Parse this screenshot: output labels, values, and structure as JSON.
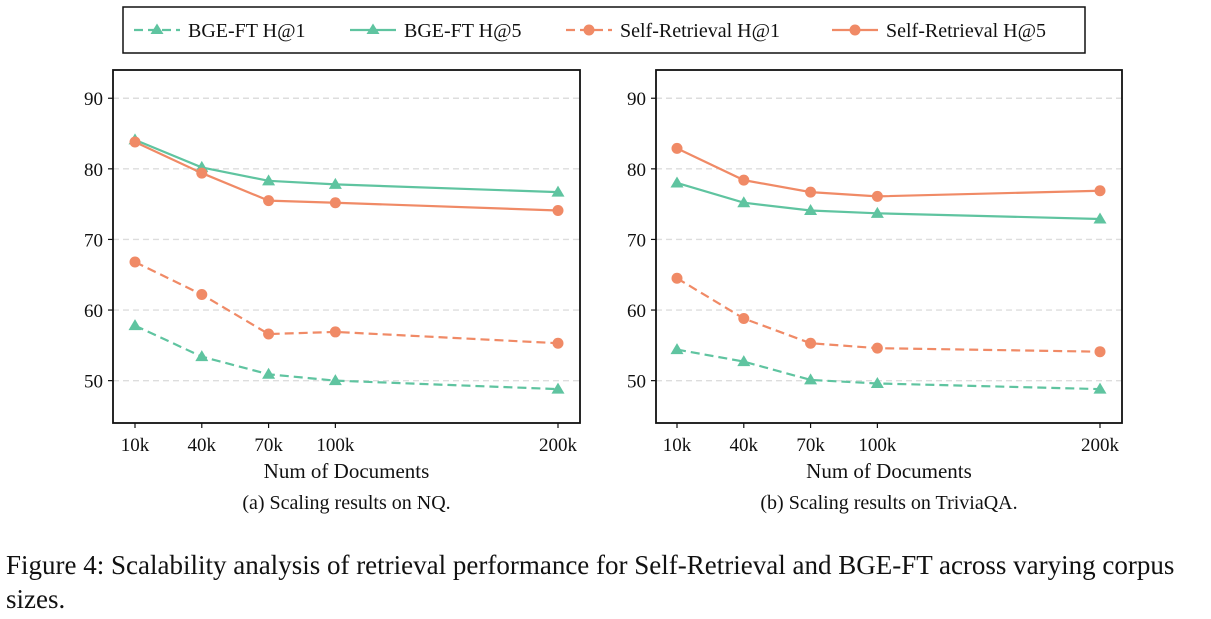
{
  "legend": [
    "BGE-FT H@1",
    "BGE-FT H@5",
    "Self-Retrieval H@1",
    "Self-Retrieval H@5"
  ],
  "colors": {
    "teal": "#5fc4a0",
    "orange": "#f08a66"
  },
  "caption": "Figure 4: Scalability analysis of retrieval performance for Self-Retrieval and BGE-FT across varying corpus sizes.",
  "chart_data": [
    {
      "type": "line",
      "title": "(a) Scaling results on NQ.",
      "xlabel": "Num of Documents",
      "ylabel": "",
      "categories": [
        "10k",
        "40k",
        "70k",
        "100k",
        "200k"
      ],
      "x": [
        10,
        40,
        70,
        100,
        200
      ],
      "ylim": [
        44,
        94
      ],
      "yticks": [
        "50",
        "60",
        "70",
        "80",
        "90"
      ],
      "grid": true,
      "series": [
        {
          "name": "BGE-FT H@1",
          "color": "#5fc4a0",
          "style": "dashed",
          "marker": "triangle",
          "values": [
            57.8,
            53.4,
            50.9,
            50.0,
            48.8
          ]
        },
        {
          "name": "BGE-FT H@5",
          "color": "#5fc4a0",
          "style": "solid",
          "marker": "triangle",
          "values": [
            84.1,
            80.2,
            78.3,
            77.8,
            76.7
          ]
        },
        {
          "name": "Self-Retrieval H@1",
          "color": "#f08a66",
          "style": "dashed",
          "marker": "circle",
          "values": [
            66.8,
            62.2,
            56.6,
            56.9,
            55.3
          ]
        },
        {
          "name": "Self-Retrieval H@5",
          "color": "#f08a66",
          "style": "solid",
          "marker": "circle",
          "values": [
            83.8,
            79.4,
            75.5,
            75.2,
            74.1
          ]
        }
      ]
    },
    {
      "type": "line",
      "title": "(b) Scaling results on TriviaQA.",
      "xlabel": "Num of Documents",
      "ylabel": "",
      "categories": [
        "10k",
        "40k",
        "70k",
        "100k",
        "200k"
      ],
      "x": [
        10,
        40,
        70,
        100,
        200
      ],
      "ylim": [
        44,
        94
      ],
      "yticks": [
        "50",
        "60",
        "70",
        "80",
        "90"
      ],
      "grid": true,
      "series": [
        {
          "name": "BGE-FT H@1",
          "color": "#5fc4a0",
          "style": "dashed",
          "marker": "triangle",
          "values": [
            54.4,
            52.7,
            50.1,
            49.6,
            48.8
          ]
        },
        {
          "name": "BGE-FT H@5",
          "color": "#5fc4a0",
          "style": "solid",
          "marker": "triangle",
          "values": [
            78.0,
            75.2,
            74.1,
            73.7,
            72.9
          ]
        },
        {
          "name": "Self-Retrieval H@1",
          "color": "#f08a66",
          "style": "dashed",
          "marker": "circle",
          "values": [
            64.5,
            58.8,
            55.3,
            54.6,
            54.1
          ]
        },
        {
          "name": "Self-Retrieval H@5",
          "color": "#f08a66",
          "style": "solid",
          "marker": "circle",
          "values": [
            82.9,
            78.4,
            76.7,
            76.1,
            76.9
          ]
        }
      ]
    }
  ]
}
